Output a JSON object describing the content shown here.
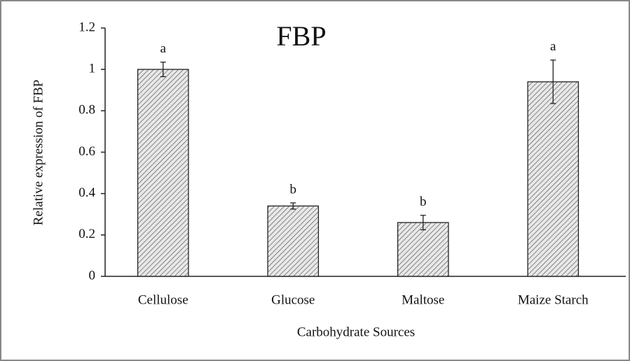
{
  "chart_data": {
    "type": "bar",
    "title": "FBP",
    "xlabel": "Carbohydrate Sources",
    "ylabel": "Relative expression of FBP",
    "categories": [
      "Cellulose",
      "Glucose",
      "Maltose",
      "Maize Starch"
    ],
    "values": [
      1.0,
      0.34,
      0.26,
      0.94
    ],
    "errors": [
      0.035,
      0.015,
      0.035,
      0.105
    ],
    "annotations": [
      "a",
      "b",
      "b",
      "a"
    ],
    "color": "#d9d9d9",
    "ylim": [
      0,
      1.2
    ],
    "yticks": [
      0,
      0.2,
      0.4,
      0.6,
      0.8,
      1,
      1.2
    ],
    "grid": false
  }
}
